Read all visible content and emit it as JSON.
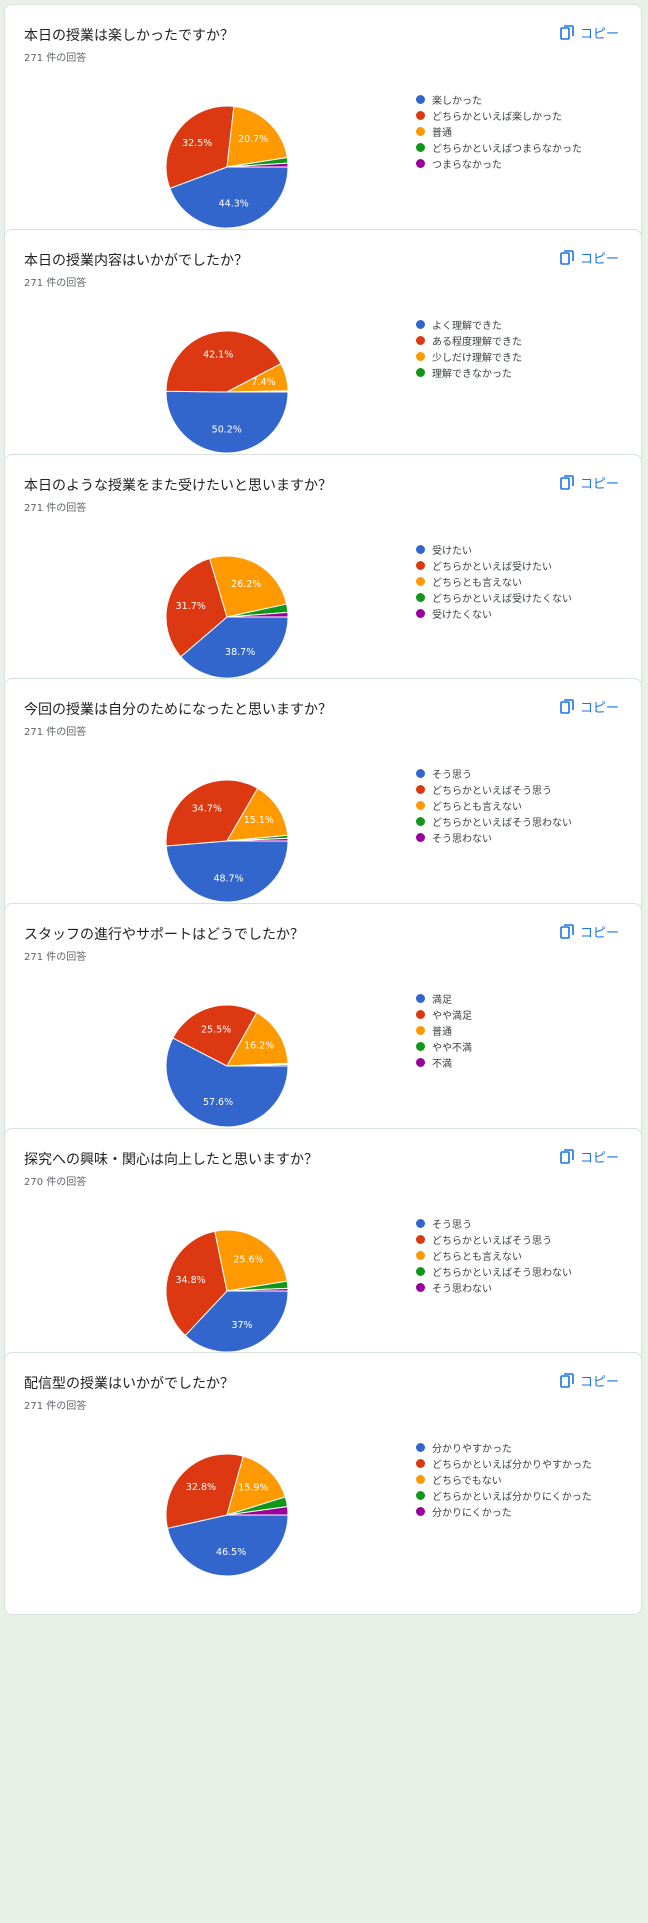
{
  "colors": {
    "series": [
      "#3366cc",
      "#dc3912",
      "#ff9900",
      "#109618",
      "#990099"
    ],
    "copy_accent": "#1a73e8"
  },
  "copy_label": "コピー",
  "copy_icon": "copy-icon",
  "cards": [
    {
      "title": "本日の授業は楽しかったですか？",
      "responses": "271 件の回答",
      "chart_data": {
        "type": "pie",
        "categories": [
          "楽しかった",
          "どちらかといえば楽しかった",
          "普通",
          "どちらかといえばつまらなかった",
          "つまらなかった"
        ],
        "values": [
          44.3,
          32.5,
          20.7,
          1.5,
          1.0
        ],
        "labels": [
          "44.3%",
          "32.5%",
          "20.7%",
          "",
          ""
        ]
      }
    },
    {
      "title": "本日の授業内容はいかがでしたか？",
      "responses": "271 件の回答",
      "chart_data": {
        "type": "pie",
        "categories": [
          "よく理解できた",
          "ある程度理解できた",
          "少しだけ理解できた",
          "理解できなかった"
        ],
        "values": [
          50.2,
          42.1,
          7.4,
          0.3
        ],
        "labels": [
          "50.2%",
          "42.1%",
          "7.4%",
          ""
        ]
      }
    },
    {
      "title": "本日のような授業をまた受けたいと思いますか？",
      "responses": "271 件の回答",
      "chart_data": {
        "type": "pie",
        "categories": [
          "受けたい",
          "どちらかといえば受けたい",
          "どちらとも言えない",
          "どちらかといえば受けたくない",
          "受けたくない"
        ],
        "values": [
          38.7,
          31.7,
          26.2,
          2.2,
          1.2
        ],
        "labels": [
          "38.7%",
          "31.7%",
          "26.2%",
          "",
          ""
        ]
      }
    },
    {
      "title": "今回の授業は自分のためになったと思いますか？",
      "responses": "271 件の回答",
      "chart_data": {
        "type": "pie",
        "categories": [
          "そう思う",
          "どちらかといえばそう思う",
          "どちらとも言えない",
          "どちらかといえばそう思わない",
          "そう思わない"
        ],
        "values": [
          48.7,
          34.7,
          15.1,
          0.8,
          0.7
        ],
        "labels": [
          "48.7%",
          "34.7%",
          "15.1%",
          "",
          ""
        ]
      }
    },
    {
      "title": "スタッフの進行やサポートはどうでしたか？",
      "responses": "271 件の回答",
      "chart_data": {
        "type": "pie",
        "categories": [
          "満足",
          "やや満足",
          "普通",
          "やや不満",
          "不満"
        ],
        "values": [
          57.6,
          25.5,
          16.2,
          0.3,
          0.4
        ],
        "labels": [
          "57.6%",
          "25.5%",
          "16.2%",
          "",
          ""
        ]
      }
    },
    {
      "title": "探究への興味・関心は向上したと思いますか？",
      "responses": "270 件の回答",
      "chart_data": {
        "type": "pie",
        "categories": [
          "そう思う",
          "どちらかといえばそう思う",
          "どちらとも言えない",
          "どちらかといえばそう思わない",
          "そう思わない"
        ],
        "values": [
          37.0,
          34.8,
          25.6,
          1.9,
          0.7
        ],
        "labels": [
          "37%",
          "34.8%",
          "25.6%",
          "",
          ""
        ]
      }
    },
    {
      "title": "配信型の授業はいかがでしたか？",
      "responses": "271 件の回答",
      "chart_data": {
        "type": "pie",
        "categories": [
          "分かりやすかった",
          "どちらかといえば分かりやすかった",
          "どちらでもない",
          "どちらかといえば分かりにくかった",
          "分かりにくかった"
        ],
        "values": [
          46.5,
          32.8,
          15.9,
          2.6,
          2.2
        ],
        "labels": [
          "46.5%",
          "32.8%",
          "15.9%",
          "",
          ""
        ]
      }
    }
  ]
}
